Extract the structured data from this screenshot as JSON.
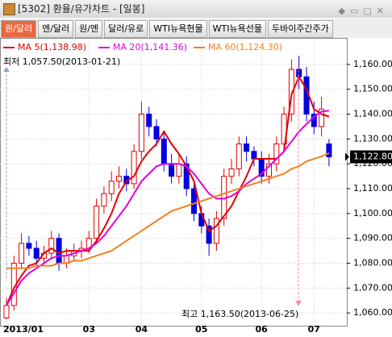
{
  "window": {
    "title": "[5302] 환율/유가차트 - [일봉]"
  },
  "tabs": [
    "원/달러",
    "엔/달러",
    "원/엔",
    "달러/유로",
    "WTI뉴욕현물",
    "WTI뉴욕선물",
    "두바이주간주가"
  ],
  "chart_data": {
    "type": "candlestick",
    "categories": [
      "2013/01",
      null,
      null,
      null,
      null,
      null,
      null,
      null,
      null,
      null,
      null,
      "03",
      null,
      null,
      null,
      null,
      null,
      null,
      "04",
      null,
      null,
      null,
      null,
      null,
      null,
      null,
      "05",
      null,
      null,
      null,
      null,
      null,
      null,
      null,
      "06",
      null,
      null,
      null,
      null,
      null,
      null,
      "07",
      null,
      null
    ],
    "open": [
      1058,
      1063,
      1080,
      1088,
      1086,
      1082,
      1084,
      1090,
      1080,
      1083,
      1085,
      1086,
      1090,
      1103,
      1108,
      1113,
      1115,
      1112,
      1125,
      1140,
      1135,
      1130,
      1120,
      1115,
      1120,
      1110,
      1100,
      1095,
      1088,
      1098,
      1115,
      1118,
      1128,
      1125,
      1122,
      1115,
      1120,
      1128,
      1140,
      1158,
      1155,
      1140,
      1135,
      1128
    ],
    "high": [
      1066,
      1083,
      1092,
      1091,
      1089,
      1087,
      1093,
      1092,
      1086,
      1088,
      1089,
      1093,
      1106,
      1111,
      1117,
      1119,
      1118,
      1128,
      1145,
      1143,
      1138,
      1133,
      1124,
      1124,
      1123,
      1113,
      1103,
      1098,
      1101,
      1118,
      1122,
      1131,
      1131,
      1127,
      1125,
      1124,
      1131,
      1143,
      1162,
      1163.5,
      1159,
      1145,
      1147,
      1130
    ],
    "low": [
      1057.5,
      1061,
      1078,
      1083,
      1079,
      1080,
      1082,
      1077,
      1078,
      1081,
      1082,
      1084,
      1088,
      1100,
      1105,
      1110,
      1109,
      1110,
      1122,
      1131,
      1127,
      1117,
      1112,
      1112,
      1107,
      1097,
      1092,
      1083,
      1085,
      1095,
      1112,
      1115,
      1121,
      1119,
      1112,
      1112,
      1117,
      1125,
      1137,
      1150,
      1137,
      1132,
      1131,
      1119
    ],
    "close": [
      1063,
      1080,
      1088,
      1086,
      1082,
      1084,
      1090,
      1080,
      1083,
      1085,
      1086,
      1090,
      1103,
      1108,
      1113,
      1115,
      1112,
      1125,
      1140,
      1135,
      1130,
      1120,
      1115,
      1120,
      1110,
      1100,
      1095,
      1088,
      1098,
      1115,
      1118,
      1128,
      1125,
      1122,
      1115,
      1120,
      1128,
      1140,
      1158,
      1155,
      1140,
      1135,
      1142,
      1122.8
    ],
    "up_color": "#e00000",
    "down_color": "#0000e0",
    "series": [
      {
        "name": "MA 5(1,138.98)",
        "color": "#e00000",
        "values": [
          1063,
          1070,
          1075,
          1079,
          1080,
          1084,
          1086,
          1084,
          1085,
          1085,
          1085,
          1085,
          1089,
          1094,
          1100,
          1108,
          1113,
          1115,
          1121,
          1125,
          1128,
          1133,
          1128,
          1124,
          1119,
          1113,
          1100,
          1093,
          1095,
          1099,
          1103,
          1109,
          1115,
          1122,
          1122,
          1122,
          1122,
          1125,
          1148,
          1155,
          1150,
          1142,
          1140,
          1139
        ]
      },
      {
        "name": "MA 20(1,141.36)",
        "color": "#e000e0",
        "values": [
          1063,
          1068,
          1073,
          1076,
          1078,
          1080,
          1082,
          1083,
          1083,
          1084,
          1085,
          1086,
          1088,
          1091,
          1095,
          1099,
          1103,
          1108,
          1113,
          1116,
          1119,
          1120,
          1120,
          1120,
          1119,
          1116,
          1112,
          1108,
          1106,
          1106,
          1107,
          1109,
          1112,
          1114,
          1116,
          1119,
          1122,
          1125,
          1129,
          1133,
          1136,
          1139,
          1141,
          1141.4
        ]
      },
      {
        "name": "MA 60(1,124.30)",
        "color": "#f08020",
        "values": [
          1078,
          1078,
          1078,
          1078,
          1079,
          1079,
          1079,
          1080,
          1080,
          1081,
          1081,
          1082,
          1083,
          1084,
          1085,
          1087,
          1089,
          1091,
          1093,
          1095,
          1097,
          1099,
          1101,
          1102,
          1103,
          1104,
          1105,
          1106,
          1107,
          1108,
          1109,
          1110,
          1111,
          1112,
          1113,
          1114,
          1115,
          1116,
          1118,
          1119,
          1121,
          1122,
          1123,
          1124.3
        ]
      }
    ],
    "ylim": [
      1055.5,
      1169.7
    ],
    "yticks": [
      {
        "value": 1060,
        "label": "1,060.00"
      },
      {
        "value": 1070,
        "label": "1,070.00"
      },
      {
        "value": 1080,
        "label": "1,080.00"
      },
      {
        "value": 1090,
        "label": "1,090.00"
      },
      {
        "value": 1100,
        "label": "1,100.00"
      },
      {
        "value": 1110,
        "label": "1,110.00"
      },
      {
        "value": 1120,
        "label": "1,120.00"
      },
      {
        "value": 1130,
        "label": "1,130.00"
      },
      {
        "value": 1140,
        "label": "1,140.00"
      },
      {
        "value": 1150,
        "label": "1,150.00"
      },
      {
        "value": 1160,
        "label": "1,160.00"
      }
    ],
    "grid": true,
    "last_price": {
      "value": 1122.8,
      "label": "1,122.80"
    },
    "low_annotation": "최저 1,057.50(2013-01-21)",
    "high_annotation": "최고 1,163.50(2013-06-25)"
  }
}
